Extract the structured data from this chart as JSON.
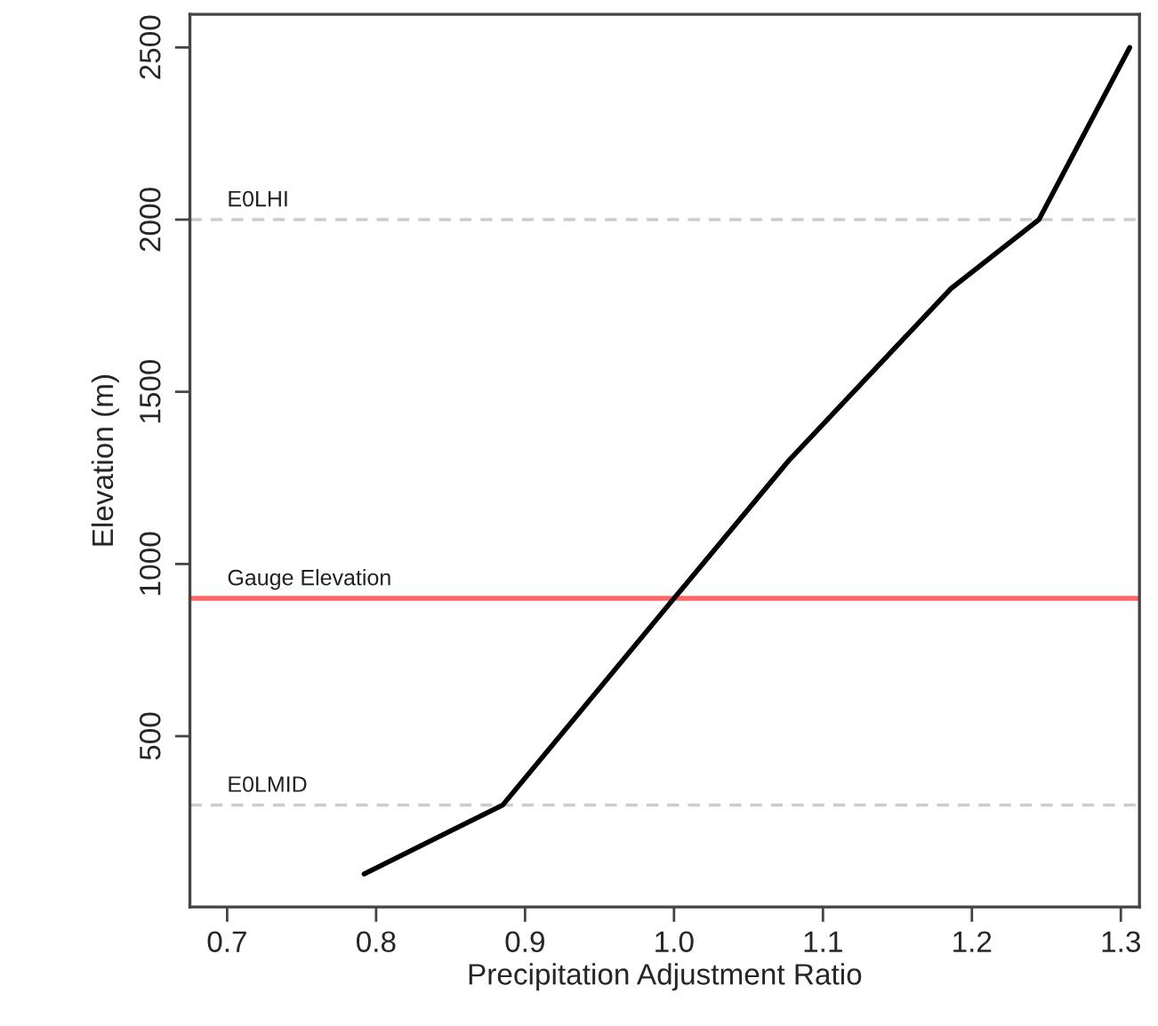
{
  "chart_data": {
    "type": "line",
    "xlabel": "Precipitation Adjustment Ratio",
    "ylabel": "Elevation (m)",
    "x": [
      0.792,
      0.885,
      1.0,
      1.077,
      1.186,
      1.245,
      1.306
    ],
    "series": [
      {
        "color": "#000000",
        "values": [
          100,
          300,
          900,
          1300,
          1800,
          2000,
          2500
        ]
      }
    ],
    "xlim": [
      0.675,
      1.3125
    ],
    "ylim": [
      4,
      2596
    ],
    "xticks": [
      {
        "value": 0.7,
        "label": "0.7"
      },
      {
        "value": 0.8,
        "label": "0.8"
      },
      {
        "value": 0.9,
        "label": "0.9"
      },
      {
        "value": 1.0,
        "label": "1.0"
      },
      {
        "value": 1.1,
        "label": "1.1"
      },
      {
        "value": 1.2,
        "label": "1.2"
      },
      {
        "value": 1.3,
        "label": "1.3"
      }
    ],
    "yticks": [
      500,
      1000,
      1500,
      2000,
      2500
    ],
    "ref_lines": [
      {
        "axis": "y",
        "value": 2000,
        "label": "E0LHI",
        "color": "#cccccc",
        "line_style": "dashed"
      },
      {
        "axis": "y",
        "value": 900,
        "label": "Gauge Elevation",
        "color": "#ff6666",
        "line_style": "solid"
      },
      {
        "axis": "y",
        "value": 300,
        "label": "E0LMID",
        "color": "#cccccc",
        "line_style": "dashed"
      }
    ],
    "grid": false,
    "marker": "none",
    "line_style": "solid"
  }
}
